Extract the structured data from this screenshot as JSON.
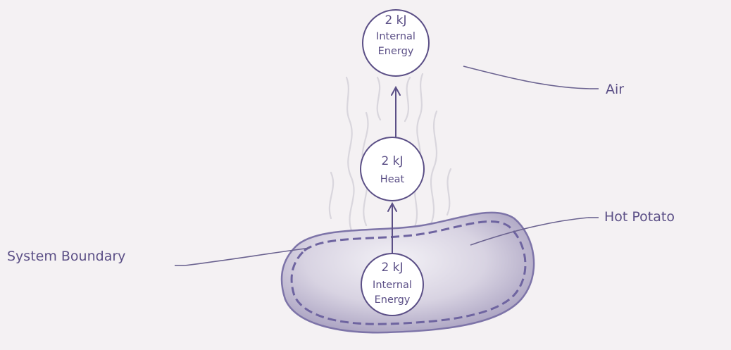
{
  "diagram": {
    "nodes": {
      "air_energy": {
        "line1": "2 kJ",
        "line2": "Internal",
        "line3": "Energy"
      },
      "heat": {
        "line1": "2 kJ",
        "line2": "Heat"
      },
      "potato_energy": {
        "line1": "2 kJ",
        "line2": "Internal",
        "line3": "Energy"
      }
    },
    "labels": {
      "air": "Air",
      "hot_potato": "Hot Potato",
      "system_boundary": "System Boundary"
    },
    "colors": {
      "ink": "#5b4f86",
      "potato_fill": "#d8d3e2",
      "potato_shadow": "#a79fbf",
      "boundary": "#6e64a0",
      "steam": "#d9d6dd",
      "background": "#f4f1f3"
    }
  }
}
